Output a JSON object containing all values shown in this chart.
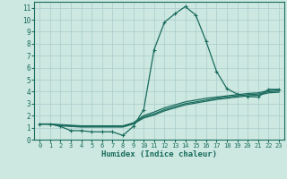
{
  "xlabel": "Humidex (Indice chaleur)",
  "xlim": [
    -0.5,
    23.5
  ],
  "ylim": [
    0,
    11.5
  ],
  "xticks": [
    0,
    1,
    2,
    3,
    4,
    5,
    6,
    7,
    8,
    9,
    10,
    11,
    12,
    13,
    14,
    15,
    16,
    17,
    18,
    19,
    20,
    21,
    22,
    23
  ],
  "yticks": [
    0,
    1,
    2,
    3,
    4,
    5,
    6,
    7,
    8,
    9,
    10,
    11
  ],
  "bg_color": "#cce8e0",
  "grid_color": "#aacccc",
  "line_color": "#1a6b5e",
  "lines": [
    {
      "x": [
        0,
        1,
        2,
        3,
        4,
        5,
        6,
        7,
        8,
        9,
        10,
        11,
        12,
        13,
        14,
        15,
        16,
        17,
        18,
        19,
        20,
        21,
        22,
        23
      ],
      "y": [
        1.3,
        1.3,
        1.1,
        0.75,
        0.75,
        0.65,
        0.65,
        0.65,
        0.35,
        1.1,
        2.5,
        7.5,
        9.8,
        10.5,
        11.1,
        10.4,
        8.2,
        5.7,
        4.25,
        3.8,
        3.6,
        3.55,
        4.2,
        4.2
      ],
      "marker": true
    },
    {
      "x": [
        0,
        1,
        2,
        3,
        4,
        5,
        6,
        7,
        8,
        9,
        10,
        11,
        12,
        13,
        14,
        15,
        16,
        17,
        18,
        19,
        20,
        21,
        22,
        23
      ],
      "y": [
        1.3,
        1.3,
        1.25,
        1.2,
        1.15,
        1.15,
        1.15,
        1.15,
        1.15,
        1.4,
        2.0,
        2.3,
        2.65,
        2.9,
        3.15,
        3.3,
        3.45,
        3.55,
        3.65,
        3.75,
        3.85,
        3.9,
        4.1,
        4.15
      ],
      "marker": false
    },
    {
      "x": [
        0,
        1,
        2,
        3,
        4,
        5,
        6,
        7,
        8,
        9,
        10,
        11,
        12,
        13,
        14,
        15,
        16,
        17,
        18,
        19,
        20,
        21,
        22,
        23
      ],
      "y": [
        1.3,
        1.3,
        1.2,
        1.15,
        1.1,
        1.1,
        1.1,
        1.1,
        1.1,
        1.35,
        1.9,
        2.15,
        2.5,
        2.75,
        3.0,
        3.15,
        3.3,
        3.45,
        3.55,
        3.65,
        3.75,
        3.8,
        4.0,
        4.05
      ],
      "marker": false
    },
    {
      "x": [
        0,
        1,
        2,
        3,
        4,
        5,
        6,
        7,
        8,
        9,
        10,
        11,
        12,
        13,
        14,
        15,
        16,
        17,
        18,
        19,
        20,
        21,
        22,
        23
      ],
      "y": [
        1.3,
        1.3,
        1.15,
        1.1,
        1.05,
        1.05,
        1.05,
        1.05,
        1.05,
        1.3,
        1.8,
        2.05,
        2.4,
        2.65,
        2.9,
        3.05,
        3.2,
        3.35,
        3.45,
        3.55,
        3.65,
        3.7,
        3.9,
        3.95
      ],
      "marker": false
    }
  ]
}
